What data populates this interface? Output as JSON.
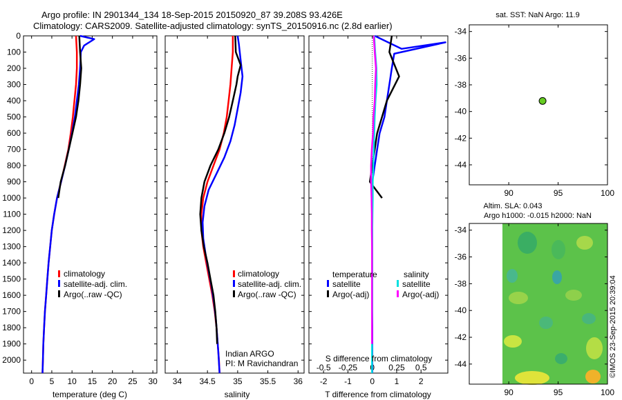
{
  "title": {
    "line1": "Argo profile: IN 2901344_134 18-Sep-2015 20150920_87 39.208S 93.426E",
    "line2": "Climatology: CARS2009. Satellite-adjusted climatology: synTS_20150916.nc (2.8d earlier)"
  },
  "footer_vertical": "©IMOS 23-Sep-2015 20:39:04",
  "colors": {
    "climatology": "#ff0000",
    "satellite": "#0000ff",
    "argo": "#000000",
    "satellite_s": "#00e0e0",
    "argo_s": "#ff00ff",
    "marker": "#66cc22"
  },
  "legend_profile": {
    "items": [
      "climatology",
      "satellite-adj. clim.",
      "Argo(..raw -QC)"
    ]
  },
  "salinity_note": {
    "line1": "Indian ARGO",
    "line2": "PI: M Ravichandran"
  },
  "diff_legend": {
    "temp_header": "temperature",
    "sal_header": "salinity",
    "temp_items": [
      "satellite",
      "Argo(-adj)"
    ],
    "sal_items": [
      "satellite",
      "Argo(-adj)"
    ]
  },
  "map_top": {
    "title": "sat. SST: NaN Argo: 11.9"
  },
  "map_bottom": {
    "title1": "Altim. SLA: 0.043",
    "title2": "Argo h1000: -0.015 h2000: NaN"
  },
  "chart_data": [
    {
      "type": "line",
      "xlabel": "temperature (deg C)",
      "ylabel": "",
      "xlim": [
        -2,
        31
      ],
      "ylim": [
        2080,
        0
      ],
      "xticks": [
        0,
        5,
        10,
        15,
        20,
        25,
        30
      ],
      "yticks": [
        0,
        100,
        200,
        300,
        400,
        500,
        600,
        700,
        800,
        900,
        1000,
        1100,
        1200,
        1300,
        1400,
        1500,
        1600,
        1700,
        1800,
        1900,
        2000
      ],
      "series": [
        {
          "name": "climatology",
          "color": "#ff0000",
          "points": [
            [
              11.0,
              0
            ],
            [
              11.1,
              50
            ],
            [
              11.2,
              100
            ],
            [
              11.2,
              200
            ],
            [
              11.0,
              300
            ],
            [
              10.6,
              400
            ],
            [
              10.2,
              500
            ],
            [
              9.7,
              600
            ],
            [
              9.1,
              700
            ],
            [
              8.2,
              800
            ],
            [
              7.3,
              900
            ],
            [
              6.3,
              1000
            ],
            [
              5.6,
              1100
            ],
            [
              5.0,
              1200
            ],
            [
              4.6,
              1300
            ],
            [
              4.2,
              1400
            ],
            [
              3.9,
              1500
            ],
            [
              3.6,
              1600
            ],
            [
              3.3,
              1700
            ],
            [
              3.1,
              1800
            ],
            [
              2.9,
              1900
            ],
            [
              2.8,
              2000
            ],
            [
              2.7,
              2080
            ]
          ]
        },
        {
          "name": "satellite-adj. clim.",
          "color": "#0000ff",
          "points": [
            [
              12.0,
              0
            ],
            [
              15.5,
              20
            ],
            [
              13.0,
              60
            ],
            [
              12.2,
              100
            ],
            [
              12.0,
              200
            ],
            [
              11.7,
              300
            ],
            [
              11.2,
              400
            ],
            [
              10.7,
              500
            ],
            [
              10.0,
              600
            ],
            [
              9.2,
              700
            ],
            [
              8.3,
              800
            ],
            [
              7.3,
              900
            ],
            [
              6.3,
              1000
            ],
            [
              5.6,
              1100
            ],
            [
              5.0,
              1200
            ],
            [
              4.6,
              1300
            ],
            [
              4.2,
              1400
            ],
            [
              3.9,
              1500
            ],
            [
              3.6,
              1600
            ],
            [
              3.3,
              1700
            ],
            [
              3.1,
              1800
            ],
            [
              2.9,
              1900
            ],
            [
              2.8,
              2000
            ],
            [
              2.7,
              2080
            ]
          ]
        },
        {
          "name": "Argo(..raw -QC)",
          "color": "#000000",
          "points": [
            [
              11.8,
              0
            ],
            [
              11.9,
              50
            ],
            [
              12.0,
              100
            ],
            [
              12.3,
              200
            ],
            [
              12.0,
              300
            ],
            [
              11.6,
              400
            ],
            [
              11.0,
              500
            ],
            [
              10.1,
              600
            ],
            [
              9.2,
              700
            ],
            [
              8.3,
              800
            ],
            [
              7.2,
              900
            ],
            [
              6.6,
              1000
            ]
          ]
        }
      ]
    },
    {
      "type": "line",
      "xlabel": "salinity",
      "ylabel": "",
      "xlim": [
        33.8,
        36.1
      ],
      "ylim": [
        2080,
        0
      ],
      "xticks": [
        34,
        34.5,
        35,
        35.5,
        36
      ],
      "series": [
        {
          "name": "climatology",
          "color": "#ff0000",
          "points": [
            [
              34.92,
              0
            ],
            [
              34.92,
              100
            ],
            [
              34.9,
              200
            ],
            [
              34.88,
              300
            ],
            [
              34.85,
              400
            ],
            [
              34.82,
              500
            ],
            [
              34.77,
              600
            ],
            [
              34.7,
              700
            ],
            [
              34.6,
              800
            ],
            [
              34.5,
              900
            ],
            [
              34.43,
              1000
            ],
            [
              34.4,
              1100
            ],
            [
              34.4,
              1200
            ],
            [
              34.43,
              1300
            ],
            [
              34.48,
              1400
            ],
            [
              34.53,
              1500
            ],
            [
              34.58,
              1600
            ],
            [
              34.62,
              1700
            ],
            [
              34.65,
              1800
            ],
            [
              34.67,
              1900
            ],
            [
              34.69,
              2000
            ],
            [
              34.7,
              2080
            ]
          ]
        },
        {
          "name": "satellite-adj. clim.",
          "color": "#0000ff",
          "points": [
            [
              35.0,
              0
            ],
            [
              35.02,
              50
            ],
            [
              35.05,
              150
            ],
            [
              35.08,
              250
            ],
            [
              35.05,
              350
            ],
            [
              35.0,
              450
            ],
            [
              34.95,
              550
            ],
            [
              34.88,
              650
            ],
            [
              34.78,
              750
            ],
            [
              34.65,
              850
            ],
            [
              34.52,
              950
            ],
            [
              34.45,
              1050
            ],
            [
              34.42,
              1150
            ],
            [
              34.43,
              1250
            ],
            [
              34.47,
              1350
            ],
            [
              34.52,
              1450
            ],
            [
              34.57,
              1550
            ],
            [
              34.61,
              1650
            ],
            [
              34.64,
              1750
            ],
            [
              34.66,
              1850
            ],
            [
              34.68,
              1950
            ],
            [
              34.7,
              2080
            ]
          ]
        },
        {
          "name": "Argo(..raw -QC)",
          "color": "#000000",
          "points": [
            [
              34.96,
              0
            ],
            [
              34.97,
              100
            ],
            [
              35.05,
              180
            ],
            [
              35.0,
              250
            ],
            [
              34.98,
              300
            ],
            [
              34.92,
              400
            ],
            [
              34.86,
              500
            ],
            [
              34.78,
              600
            ],
            [
              34.68,
              700
            ],
            [
              34.55,
              800
            ],
            [
              34.45,
              900
            ],
            [
              34.4,
              1000
            ],
            [
              34.38,
              1100
            ],
            [
              34.4,
              1200
            ],
            [
              34.44,
              1300
            ],
            [
              34.5,
              1400
            ],
            [
              34.55,
              1500
            ],
            [
              34.6,
              1600
            ],
            [
              34.63,
              1700
            ],
            [
              34.65,
              1800
            ],
            [
              34.66,
              1900
            ]
          ]
        }
      ]
    },
    {
      "type": "line",
      "xlabel": "T difference from climatology",
      "xlabel2": "S difference from climatology",
      "xlim": [
        -2.6,
        3.1
      ],
      "xticks": [
        -2,
        -1,
        0,
        1,
        2
      ],
      "xticks2": [
        -0.5,
        -0.25,
        0,
        0.25,
        0.5
      ],
      "ylim": [
        2080,
        0
      ],
      "series": [
        {
          "name": "temperature satellite",
          "color": "#0000ff",
          "points": [
            [
              0.1,
              0
            ],
            [
              1.2,
              80
            ],
            [
              3.0,
              40
            ],
            [
              0.9,
              110
            ],
            [
              0.8,
              200
            ],
            [
              0.7,
              300
            ],
            [
              0.6,
              400
            ],
            [
              0.5,
              500
            ],
            [
              0.3,
              600
            ],
            [
              0.2,
              700
            ],
            [
              0.1,
              800
            ],
            [
              0.0,
              900
            ],
            [
              0.0,
              1000
            ],
            [
              0.0,
              1100
            ],
            [
              0.0,
              1200
            ],
            [
              0.0,
              1300
            ],
            [
              0.0,
              1400
            ],
            [
              0.0,
              1500
            ],
            [
              0.0,
              1600
            ],
            [
              0.0,
              1700
            ],
            [
              0.0,
              1800
            ],
            [
              0.0,
              1900
            ],
            [
              0.0,
              2000
            ],
            [
              0.0,
              2080
            ]
          ]
        },
        {
          "name": "temperature Argo(-adj)",
          "color": "#000000",
          "points": [
            [
              0.8,
              0
            ],
            [
              0.7,
              100
            ],
            [
              1.1,
              250
            ],
            [
              0.6,
              400
            ],
            [
              0.4,
              500
            ],
            [
              0.2,
              600
            ],
            [
              0.1,
              700
            ],
            [
              0.0,
              800
            ],
            [
              -0.1,
              900
            ],
            [
              0.4,
              1000
            ]
          ]
        },
        {
          "name": "salinity satellite",
          "color": "#00e0e0",
          "points": [
            [
              0.08,
              0
            ],
            [
              0.12,
              100
            ],
            [
              0.17,
              200
            ],
            [
              0.18,
              300
            ],
            [
              0.13,
              400
            ],
            [
              0.1,
              500
            ],
            [
              0.08,
              600
            ],
            [
              0.06,
              700
            ],
            [
              0.04,
              800
            ],
            [
              0.02,
              900
            ],
            [
              0.02,
              1000
            ],
            [
              0.01,
              1100
            ],
            [
              0.0,
              1200
            ],
            [
              0.0,
              1300
            ],
            [
              0.0,
              1400
            ],
            [
              0.0,
              1500
            ],
            [
              0.0,
              1600
            ],
            [
              0.0,
              1700
            ],
            [
              -0.01,
              1800
            ],
            [
              -0.01,
              1900
            ],
            [
              -0.01,
              2000
            ],
            [
              -0.01,
              2080
            ]
          ]
        },
        {
          "name": "salinity Argo(-adj)",
          "color": "#ff00ff",
          "points": [
            [
              0.06,
              0
            ],
            [
              0.1,
              100
            ],
            [
              0.15,
              200
            ],
            [
              0.12,
              300
            ],
            [
              0.1,
              400
            ],
            [
              0.05,
              500
            ],
            [
              0.03,
              600
            ],
            [
              -0.02,
              700
            ],
            [
              -0.05,
              800
            ],
            [
              -0.05,
              900
            ],
            [
              -0.03,
              1000
            ],
            [
              -0.02,
              1100
            ],
            [
              -0.02,
              1200
            ],
            [
              -0.01,
              1300
            ],
            [
              -0.01,
              1400
            ],
            [
              -0.01,
              1500
            ],
            [
              -0.01,
              1600
            ],
            [
              -0.01,
              1700
            ],
            [
              -0.01,
              1800
            ],
            [
              -0.01,
              1900
            ]
          ]
        }
      ]
    },
    {
      "type": "scatter",
      "xlim": [
        86,
        100
      ],
      "ylim": [
        -45.5,
        -33.5
      ],
      "xticks": [
        90,
        95,
        100
      ],
      "yticks": [
        -34,
        -36,
        -38,
        -40,
        -42,
        -44
      ],
      "points": [
        [
          93.426,
          -39.208
        ]
      ]
    },
    {
      "type": "heatmap",
      "xlim": [
        86,
        100
      ],
      "ylim": [
        -45.5,
        -33.5
      ],
      "xticks": [
        90,
        95,
        100
      ],
      "yticks": [
        -34,
        -36,
        -38,
        -40,
        -42,
        -44
      ],
      "data_xlim": [
        90,
        100
      ]
    }
  ]
}
